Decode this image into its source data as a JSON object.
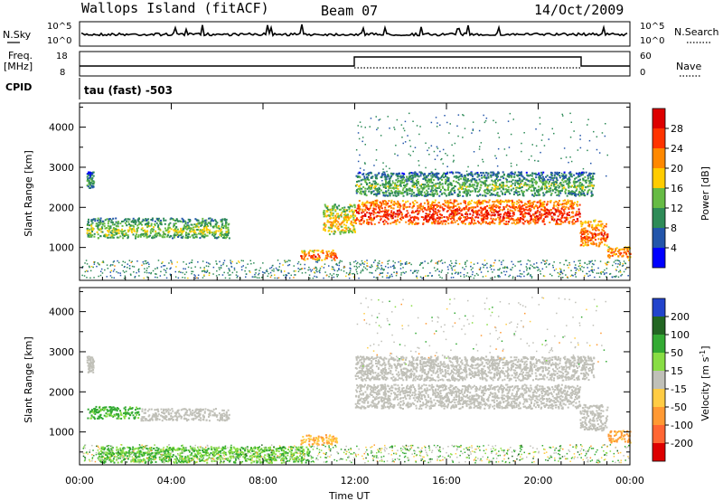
{
  "header": {
    "title": "Wallops Island (fitACF)",
    "beam": "Beam 07",
    "date": "14/Oct/2009"
  },
  "noise_panel": {
    "left_label": "N.Sky",
    "right_label": "N.Search",
    "left_ticks": [
      "10^5",
      "10^0"
    ],
    "right_ticks": [
      "10^5",
      "10^0"
    ]
  },
  "freq_panel": {
    "left_label_1": "Freq.",
    "left_label_2": "[MHz]",
    "left_ticks": [
      "18",
      "8"
    ],
    "right_label": "Nave",
    "right_ticks": [
      "60",
      "0"
    ]
  },
  "cpid_panel": {
    "label": "CPID",
    "text": "tau (fast) -503"
  },
  "colors": {
    "power_scale": [
      "#0000ff",
      "#2255aa",
      "#2e8b57",
      "#66bb44",
      "#ffcc00",
      "#ff8800",
      "#ff3300",
      "#dd0000"
    ],
    "velocity_scale": [
      "#2244cc",
      "#226622",
      "#33aa33",
      "#88dd44",
      "#c0c0b8",
      "#ffcc44",
      "#ff9933",
      "#ff6633",
      "#dd0000"
    ],
    "ground_scatter": "#c0c0b8"
  },
  "chart_data": [
    {
      "type": "heatmap",
      "title": "",
      "ylabel": "Slant Range [km]",
      "xlabel": "",
      "x_ticks": [
        "00:00",
        "04:00",
        "08:00",
        "12:00",
        "16:00",
        "20:00",
        "00:00"
      ],
      "y_ticks": [
        "1000",
        "2000",
        "3000",
        "4000"
      ],
      "xlim_hours": [
        0,
        24
      ],
      "ylim_km": [
        180,
        4600
      ],
      "colorbar": {
        "label": "Power [dB]",
        "ticks": [
          "4",
          "8",
          "12",
          "16",
          "20",
          "24",
          "28"
        ]
      },
      "echo_bands": [
        {
          "start_hour": 0.3,
          "end_hour": 0.6,
          "range_km": [
            2500,
            2900
          ],
          "value_db": 8
        },
        {
          "start_hour": 0.3,
          "end_hour": 6.5,
          "range_km": [
            1250,
            1750
          ],
          "value_db": 12
        },
        {
          "start_hour": 9.6,
          "end_hour": 11.2,
          "range_km": [
            700,
            950
          ],
          "value_db": 22
        },
        {
          "start_hour": 10.6,
          "end_hour": 12.0,
          "range_km": [
            1350,
            2100
          ],
          "value_db": 16
        },
        {
          "start_hour": 12.0,
          "end_hour": 21.8,
          "range_km": [
            1600,
            2200
          ],
          "value_db": 24
        },
        {
          "start_hour": 12.0,
          "end_hour": 22.4,
          "range_km": [
            2300,
            2900
          ],
          "value_db": 10
        },
        {
          "start_hour": 21.8,
          "end_hour": 23.0,
          "range_km": [
            1050,
            1700
          ],
          "value_db": 22
        },
        {
          "start_hour": 23.0,
          "end_hour": 24.0,
          "range_km": [
            750,
            1050
          ],
          "value_db": 20
        }
      ]
    },
    {
      "type": "heatmap",
      "title": "",
      "ylabel": "Slant Range [km]",
      "xlabel": "Time UT",
      "x_ticks": [
        "00:00",
        "04:00",
        "08:00",
        "12:00",
        "16:00",
        "20:00",
        "00:00"
      ],
      "y_ticks": [
        "1000",
        "2000",
        "3000",
        "4000"
      ],
      "xlim_hours": [
        0,
        24
      ],
      "ylim_km": [
        180,
        4600
      ],
      "colorbar": {
        "label": "Velocity [m s^-1]",
        "ticks": [
          "200",
          "100",
          "50",
          "15",
          "-15",
          "-50",
          "-100",
          "-200"
        ]
      },
      "echo_bands": [
        {
          "start_hour": 0.3,
          "end_hour": 0.6,
          "range_km": [
            2500,
            2900
          ],
          "value_ms": 0
        },
        {
          "start_hour": 0.3,
          "end_hour": 2.6,
          "range_km": [
            1350,
            1650
          ],
          "value_ms": 40
        },
        {
          "start_hour": 2.6,
          "end_hour": 6.5,
          "range_km": [
            1300,
            1600
          ],
          "value_ms": 0
        },
        {
          "start_hour": 0.8,
          "end_hour": 10.0,
          "range_km": [
            250,
            650
          ],
          "value_ms": 30
        },
        {
          "start_hour": 9.6,
          "end_hour": 11.2,
          "range_km": [
            700,
            950
          ],
          "value_ms": -30
        },
        {
          "start_hour": 12.0,
          "end_hour": 21.8,
          "range_km": [
            1600,
            2200
          ],
          "value_ms": 0
        },
        {
          "start_hour": 12.0,
          "end_hour": 22.4,
          "range_km": [
            2300,
            2900
          ],
          "value_ms": 0
        },
        {
          "start_hour": 21.8,
          "end_hour": 23.0,
          "range_km": [
            1050,
            1700
          ],
          "value_ms": 0
        },
        {
          "start_hour": 23.0,
          "end_hour": 24.0,
          "range_km": [
            750,
            1050
          ],
          "value_ms": -40
        }
      ]
    }
  ]
}
